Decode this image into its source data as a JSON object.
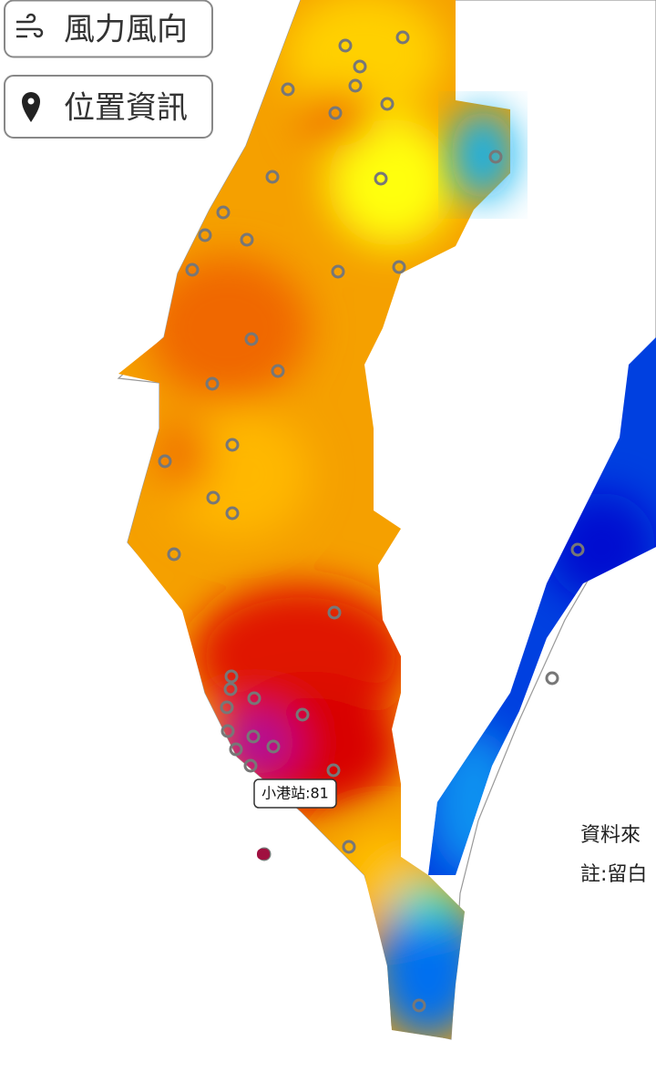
{
  "buttons": [
    {
      "label": "風力風向"
    },
    {
      "label": "位置資訊"
    }
  ],
  "tooltip": {
    "label": "小港站:81"
  },
  "notes": [
    {
      "text": "資料來"
    },
    {
      "text": "註:留白"
    }
  ]
}
